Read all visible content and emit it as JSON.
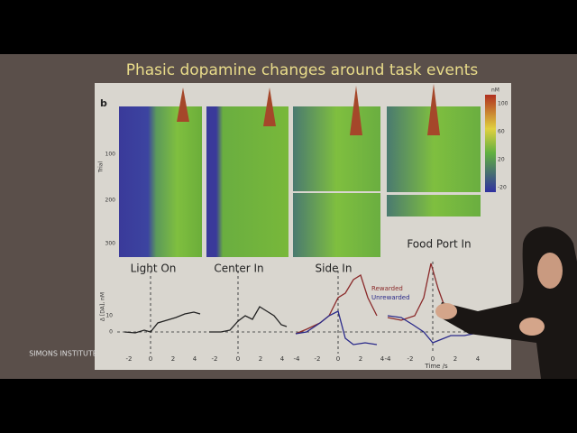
{
  "slide": {
    "title": "Phasic dopamine changes around task events",
    "panel_letter": "b",
    "colorbar": {
      "unit": "nM",
      "ticks": [
        "100",
        "60",
        "20",
        "-20"
      ]
    },
    "heatmap_axis": {
      "label": "Trial",
      "ticks": [
        "100",
        "200",
        "300"
      ]
    },
    "panels": [
      {
        "title": "Light On",
        "xticks": [
          "-2",
          "0",
          "2",
          "4"
        ]
      },
      {
        "title": "Center In",
        "xticks": [
          "-2",
          "0",
          "2",
          "4"
        ]
      },
      {
        "title": "Side In",
        "xticks": [
          "-4",
          "-2",
          "0",
          "2",
          "4"
        ]
      },
      {
        "title": "Food Port In",
        "xticks": [
          "-4",
          "-2",
          "0",
          "2",
          "4"
        ]
      }
    ],
    "legend": [
      "Rewarded",
      "Unrewarded"
    ],
    "trace_axis": {
      "label": "Δ [DA], nM",
      "ticks": [
        "10",
        "0"
      ]
    },
    "x_label": "Time /s",
    "logo": "SIMONS INSTITUTE"
  }
}
